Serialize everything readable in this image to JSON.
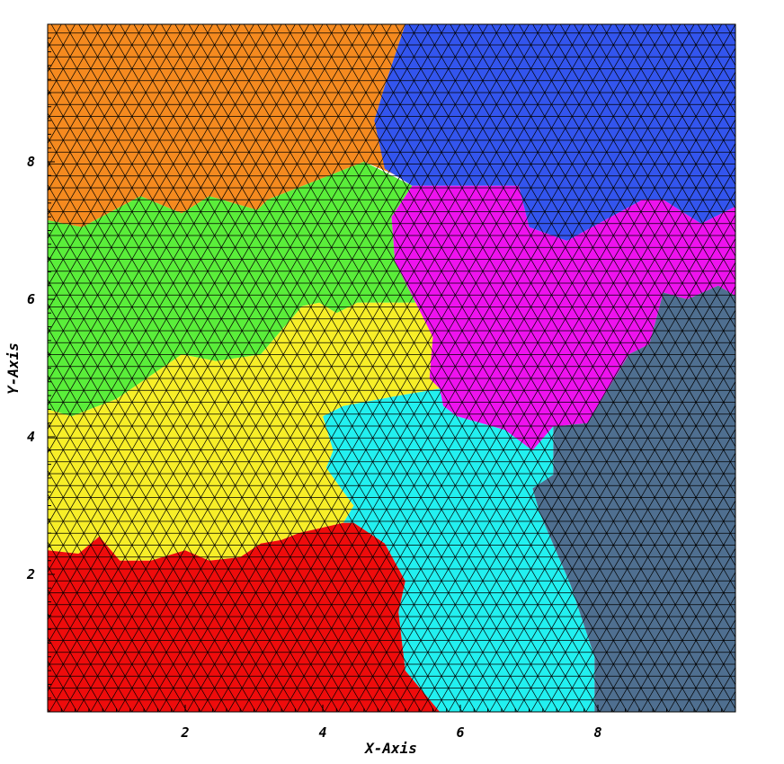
{
  "chart_data": {
    "type": "mesh-partition",
    "xlabel": "X-Axis",
    "ylabel": "Y-Axis",
    "xlim": [
      0,
      10
    ],
    "ylim": [
      0,
      10
    ],
    "xticks": [
      2,
      4,
      6,
      8
    ],
    "yticks": [
      2,
      4,
      6,
      8
    ],
    "mesh_spacing": 0.2,
    "regions": [
      {
        "id": "orange",
        "color": "#f58a1f",
        "polygon": [
          [
            0,
            7.15
          ],
          [
            0.5,
            7.05
          ],
          [
            1.35,
            7.5
          ],
          [
            1.95,
            7.25
          ],
          [
            2.35,
            7.5
          ],
          [
            3.05,
            7.3
          ],
          [
            3.2,
            7.45
          ],
          [
            4.6,
            8.0
          ],
          [
            5.2,
            7.75
          ],
          [
            4.75,
            8.6
          ],
          [
            4.9,
            9.1
          ],
          [
            5.2,
            10
          ],
          [
            0,
            10
          ]
        ]
      },
      {
        "id": "blue",
        "color": "#3355ee",
        "polygon": [
          [
            5.2,
            10
          ],
          [
            10,
            10
          ],
          [
            10,
            7.35
          ],
          [
            9.5,
            7.1
          ],
          [
            8.95,
            7.45
          ],
          [
            8.65,
            7.45
          ],
          [
            7.55,
            6.85
          ],
          [
            7.0,
            7.05
          ],
          [
            6.85,
            7.65
          ],
          [
            5.3,
            7.65
          ],
          [
            4.9,
            7.9
          ],
          [
            4.75,
            8.6
          ],
          [
            4.9,
            9.1
          ]
        ]
      },
      {
        "id": "green",
        "color": "#5aee3a",
        "polygon": [
          [
            0,
            7.15
          ],
          [
            0.5,
            7.05
          ],
          [
            1.35,
            7.5
          ],
          [
            1.95,
            7.25
          ],
          [
            2.35,
            7.5
          ],
          [
            3.05,
            7.3
          ],
          [
            3.2,
            7.45
          ],
          [
            4.6,
            8.0
          ],
          [
            5.3,
            7.65
          ],
          [
            5.0,
            7.2
          ],
          [
            5.05,
            6.55
          ],
          [
            5.35,
            5.95
          ],
          [
            4.5,
            5.95
          ],
          [
            4.2,
            5.8
          ],
          [
            3.95,
            5.95
          ],
          [
            3.7,
            5.9
          ],
          [
            3.1,
            5.2
          ],
          [
            2.45,
            5.1
          ],
          [
            1.95,
            5.2
          ],
          [
            1.0,
            4.55
          ],
          [
            0.35,
            4.3
          ],
          [
            0,
            4.4
          ]
        ]
      },
      {
        "id": "magenta",
        "color": "#ee12ee",
        "polygon": [
          [
            5.3,
            7.65
          ],
          [
            6.85,
            7.65
          ],
          [
            7.0,
            7.05
          ],
          [
            7.55,
            6.85
          ],
          [
            8.65,
            7.45
          ],
          [
            8.95,
            7.45
          ],
          [
            9.5,
            7.1
          ],
          [
            10,
            7.35
          ],
          [
            10,
            6.05
          ],
          [
            9.75,
            6.2
          ],
          [
            9.3,
            6.0
          ],
          [
            8.95,
            6.1
          ],
          [
            8.75,
            5.35
          ],
          [
            8.45,
            5.2
          ],
          [
            7.85,
            4.2
          ],
          [
            7.35,
            4.15
          ],
          [
            7.05,
            3.8
          ],
          [
            6.65,
            4.1
          ],
          [
            5.95,
            4.3
          ],
          [
            5.75,
            4.45
          ],
          [
            5.7,
            4.7
          ],
          [
            5.55,
            4.85
          ],
          [
            5.6,
            5.45
          ],
          [
            5.35,
            5.95
          ],
          [
            5.05,
            6.55
          ],
          [
            5.0,
            7.2
          ]
        ]
      },
      {
        "id": "slate",
        "color": "#4f6f90",
        "polygon": [
          [
            10,
            6.05
          ],
          [
            9.75,
            6.2
          ],
          [
            9.3,
            6.0
          ],
          [
            8.95,
            6.1
          ],
          [
            8.75,
            5.35
          ],
          [
            8.45,
            5.2
          ],
          [
            7.85,
            4.2
          ],
          [
            7.35,
            4.15
          ],
          [
            7.35,
            3.45
          ],
          [
            7.05,
            3.25
          ],
          [
            7.15,
            2.9
          ],
          [
            7.6,
            1.85
          ],
          [
            7.95,
            0.8
          ],
          [
            7.95,
            0
          ],
          [
            10,
            0
          ]
        ]
      },
      {
        "id": "cyan",
        "color": "#22f0f0",
        "polygon": [
          [
            5.7,
            4.7
          ],
          [
            5.75,
            4.45
          ],
          [
            5.95,
            4.3
          ],
          [
            6.65,
            4.1
          ],
          [
            7.05,
            3.8
          ],
          [
            7.35,
            4.15
          ],
          [
            7.35,
            3.45
          ],
          [
            7.05,
            3.25
          ],
          [
            7.15,
            2.9
          ],
          [
            7.6,
            1.85
          ],
          [
            7.95,
            0.8
          ],
          [
            7.95,
            0
          ],
          [
            5.7,
            0
          ],
          [
            5.2,
            0.6
          ],
          [
            5.1,
            1.45
          ],
          [
            5.2,
            1.9
          ],
          [
            4.9,
            2.45
          ],
          [
            4.45,
            2.75
          ],
          [
            4.3,
            2.75
          ],
          [
            4.45,
            3.0
          ],
          [
            4.3,
            3.2
          ],
          [
            4.05,
            3.55
          ],
          [
            4.15,
            3.8
          ],
          [
            4.0,
            4.3
          ],
          [
            4.3,
            4.45
          ],
          [
            5.1,
            4.6
          ]
        ]
      },
      {
        "id": "yellow",
        "color": "#f7ee28",
        "polygon": [
          [
            0,
            4.4
          ],
          [
            0.35,
            4.3
          ],
          [
            1.0,
            4.55
          ],
          [
            1.95,
            5.2
          ],
          [
            2.45,
            5.1
          ],
          [
            3.1,
            5.2
          ],
          [
            3.7,
            5.9
          ],
          [
            3.95,
            5.95
          ],
          [
            4.2,
            5.8
          ],
          [
            4.5,
            5.95
          ],
          [
            5.35,
            5.95
          ],
          [
            5.6,
            5.45
          ],
          [
            5.55,
            4.85
          ],
          [
            5.7,
            4.7
          ],
          [
            5.1,
            4.6
          ],
          [
            4.3,
            4.45
          ],
          [
            4.0,
            4.3
          ],
          [
            4.15,
            3.8
          ],
          [
            4.05,
            3.55
          ],
          [
            4.3,
            3.2
          ],
          [
            4.45,
            3.0
          ],
          [
            4.3,
            2.75
          ],
          [
            3.65,
            2.6
          ],
          [
            3.4,
            2.5
          ],
          [
            3.1,
            2.45
          ],
          [
            2.8,
            2.25
          ],
          [
            2.35,
            2.2
          ],
          [
            2.0,
            2.35
          ],
          [
            1.5,
            2.2
          ],
          [
            1.05,
            2.2
          ],
          [
            0.75,
            2.55
          ],
          [
            0.45,
            2.3
          ],
          [
            0,
            2.35
          ]
        ]
      },
      {
        "id": "red",
        "color": "#ee0c0c",
        "polygon": [
          [
            0,
            0
          ],
          [
            5.7,
            0
          ],
          [
            5.2,
            0.6
          ],
          [
            5.1,
            1.45
          ],
          [
            5.2,
            1.9
          ],
          [
            4.9,
            2.45
          ],
          [
            4.45,
            2.75
          ],
          [
            4.3,
            2.75
          ],
          [
            3.65,
            2.6
          ],
          [
            3.4,
            2.5
          ],
          [
            3.1,
            2.45
          ],
          [
            2.8,
            2.25
          ],
          [
            2.35,
            2.2
          ],
          [
            2.0,
            2.35
          ],
          [
            1.5,
            2.2
          ],
          [
            1.05,
            2.2
          ],
          [
            0.75,
            2.55
          ],
          [
            0.45,
            2.3
          ],
          [
            0,
            2.35
          ]
        ]
      }
    ]
  }
}
